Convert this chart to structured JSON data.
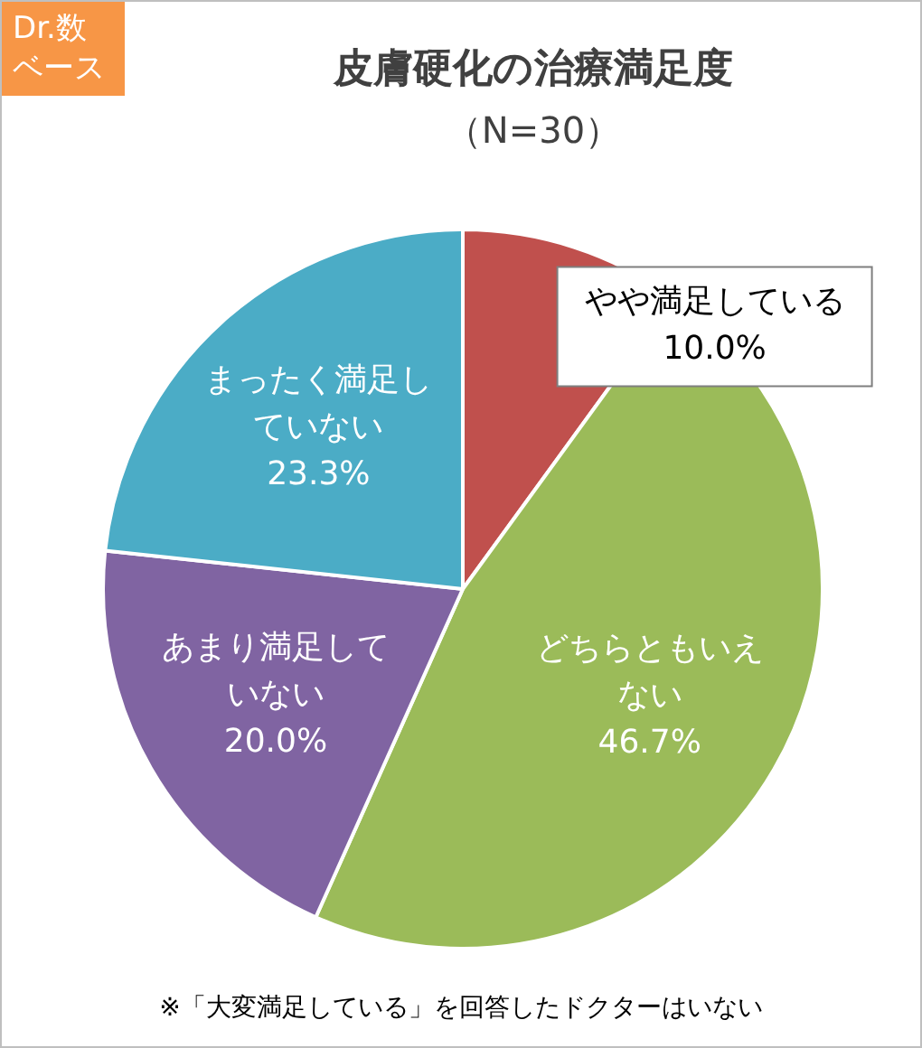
{
  "chart_data": {
    "type": "pie",
    "title": "皮膚硬化の治療満足度",
    "subtitle": "（N=30）",
    "categories": [
      "やや満足している",
      "どちらともいえない",
      "あまり満足していない",
      "まったく満足していない"
    ],
    "values": [
      10.0,
      46.7,
      20.0,
      23.3
    ],
    "colors": [
      "#c0504d",
      "#9bbb59",
      "#8064a2",
      "#4bacc6"
    ],
    "value_labels": [
      "10.0%",
      "46.7%",
      "20.0%",
      "23.3%"
    ],
    "legend": false,
    "annotations": [
      "Dr.数ベース",
      "※「大変満足している」を回答したドクターはいない"
    ]
  }
}
